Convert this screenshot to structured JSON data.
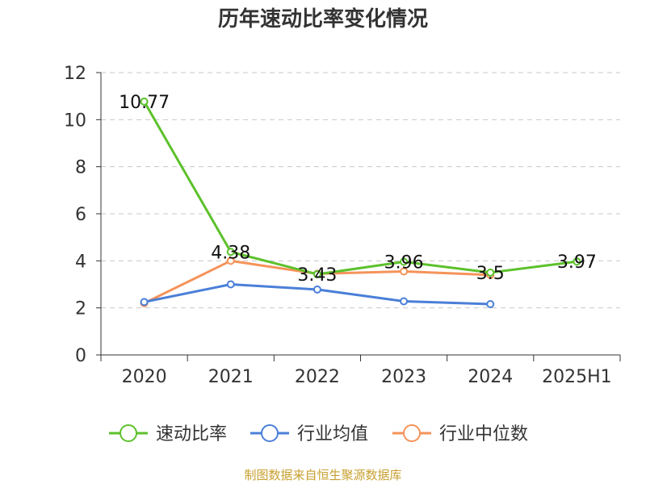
{
  "chart_data": {
    "type": "line",
    "title": "历年速动比率变化情况",
    "categories": [
      "2020",
      "2021",
      "2022",
      "2023",
      "2024",
      "2025H1"
    ],
    "ylim": [
      0,
      12
    ],
    "yticks": [
      0,
      2,
      4,
      6,
      8,
      10,
      12
    ],
    "grid": true,
    "legend_position": "bottom",
    "series": [
      {
        "name": "速动比率",
        "color": "#5cc12b",
        "values": [
          10.77,
          4.38,
          3.43,
          3.96,
          3.5,
          3.97
        ],
        "labels": [
          "10.77",
          "4.38",
          "3.43",
          "3.96",
          "3.5",
          "3.97"
        ]
      },
      {
        "name": "行业均值",
        "color": "#4a7fd8",
        "values": [
          2.25,
          3.0,
          2.78,
          2.28,
          2.16,
          null
        ]
      },
      {
        "name": "行业中位数",
        "color": "#f5935a",
        "values": [
          2.2,
          4.0,
          3.45,
          3.55,
          3.4,
          null
        ]
      }
    ]
  },
  "source_text": "制图数据来自恒生聚源数据库"
}
